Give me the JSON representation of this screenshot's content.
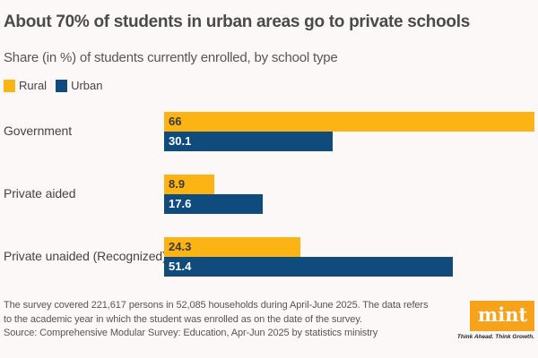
{
  "chart_data": {
    "type": "bar",
    "orientation": "horizontal",
    "title": "About 70% of students in urban areas go to private schools",
    "subtitle": "Share (in %) of students currently enrolled, by school type",
    "categories": [
      "Government",
      "Private aided",
      "Private unaided (Recognized)"
    ],
    "series": [
      {
        "name": "Rural",
        "values": [
          66,
          8.9,
          24.3
        ],
        "color": "#fcb415",
        "label_color": "#3a3a3a"
      },
      {
        "name": "Urban",
        "values": [
          30.1,
          17.6,
          51.4
        ],
        "color": "#0f4c7d",
        "label_color": "#ffffff"
      }
    ],
    "legend": "top-left",
    "grid": false,
    "xlim": [
      0,
      66
    ]
  },
  "footer": {
    "note_line1": "The survey covered 221,617 persons in 52,085 households during April-June 2025. The data refers",
    "note_line2": "to the academic year in which the student was enrolled as on the date of the survey.",
    "source": "Source: Comprehensive Modular Survey: Education, Apr-Jun 2025 by statistics ministry"
  },
  "logo": {
    "text": "mint",
    "tagline": "Think Ahead. Think Growth.",
    "color": "#f7a21b"
  }
}
